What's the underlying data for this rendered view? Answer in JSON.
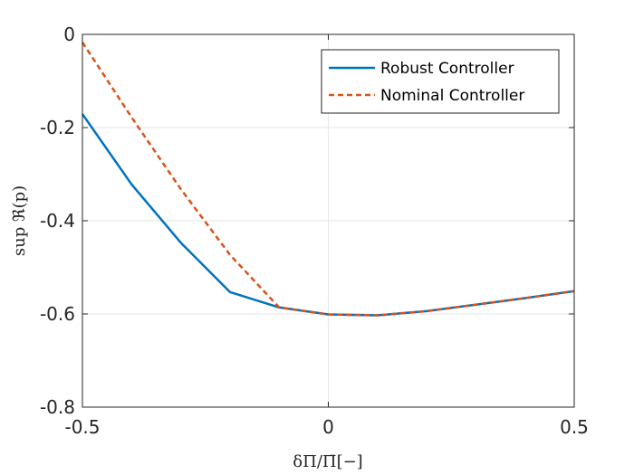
{
  "chart_data": {
    "type": "line",
    "xlabel": "δΠ/Π̄[−]",
    "ylabel": "sup ℜ(p)",
    "xlim": [
      -0.5,
      0.5
    ],
    "ylim": [
      -0.8,
      0
    ],
    "xticks": [
      -0.5,
      0,
      0.5
    ],
    "xtick_labels": [
      "-0.5",
      "0",
      "0.5"
    ],
    "yticks": [
      0,
      -0.2,
      -0.4,
      -0.6,
      -0.8
    ],
    "ytick_labels": [
      "0",
      "-0.2",
      "-0.4",
      "-0.6",
      "-0.8"
    ],
    "grid": true,
    "legend_position": "top-right",
    "series": [
      {
        "name": "Robust Controller",
        "style": "solid",
        "color": "#0072BD",
        "x": [
          -0.5,
          -0.4,
          -0.3,
          -0.2,
          -0.1,
          0,
          0.1,
          0.2,
          0.3,
          0.4,
          0.5
        ],
        "y": [
          -0.171,
          -0.322,
          -0.447,
          -0.553,
          -0.586,
          -0.601,
          -0.603,
          -0.594,
          -0.58,
          -0.566,
          -0.551
        ]
      },
      {
        "name": "Nominal Controller",
        "style": "dashed",
        "color": "#D95319",
        "x": [
          -0.5,
          -0.4,
          -0.3,
          -0.2,
          -0.1,
          0,
          0.1,
          0.2,
          0.3,
          0.4,
          0.5
        ],
        "y": [
          -0.017,
          -0.178,
          -0.332,
          -0.473,
          -0.586,
          -0.601,
          -0.603,
          -0.594,
          -0.58,
          -0.566,
          -0.551
        ]
      }
    ]
  }
}
